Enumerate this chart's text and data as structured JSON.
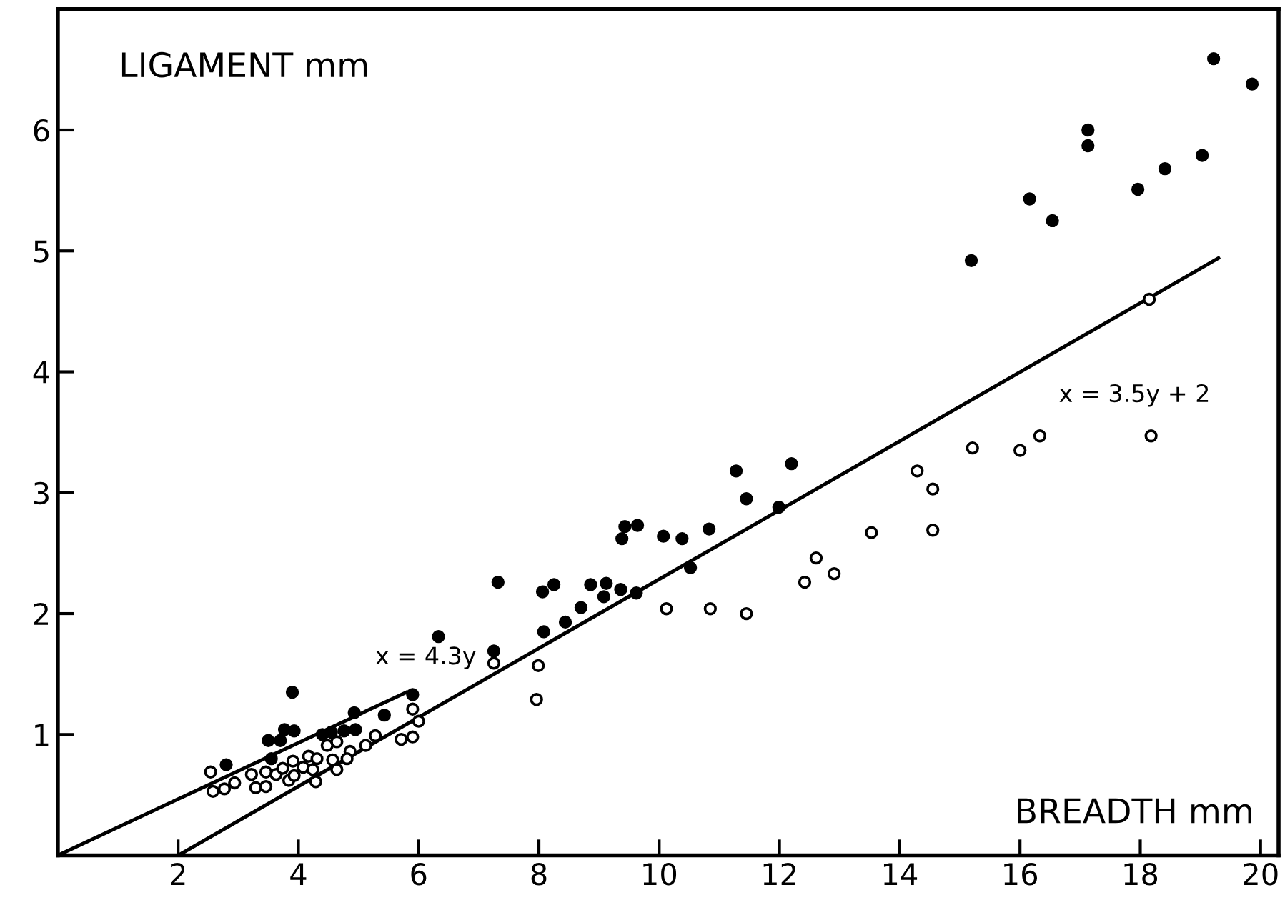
{
  "chart_data": {
    "type": "scatter",
    "xlabel": "BREADTH mm",
    "ylabel": "LIGAMENT mm",
    "xlim": [
      0,
      20.3
    ],
    "ylim": [
      0,
      7
    ],
    "xticks": [
      2,
      4,
      6,
      8,
      10,
      12,
      14,
      16,
      18,
      20
    ],
    "yticks": [
      1,
      2,
      3,
      4,
      5,
      6
    ],
    "grid": false,
    "legend": false,
    "series": [
      {
        "color": "#000000",
        "marker": "circle",
        "x": [
          2.8,
          3.9,
          3.5,
          3.7,
          3.77,
          3.93,
          3.55,
          4.4,
          4.55,
          4.76,
          4.95,
          4.93,
          5.43,
          5.9,
          6.33,
          7.25,
          7.32,
          8.08,
          8.06,
          8.25,
          8.44,
          8.7,
          8.86,
          9.12,
          9.08,
          9.36,
          9.62,
          9.38,
          9.43,
          9.64,
          10.07,
          10.38,
          10.52,
          10.83,
          11.28,
          11.45,
          11.99,
          12.2,
          15.19,
          16.16,
          16.54,
          17.13,
          17.13,
          17.96,
          18.41,
          19.03,
          19.22,
          19.86
        ],
        "values": [
          0.75,
          1.35,
          0.95,
          0.95,
          1.04,
          1.03,
          0.8,
          1.0,
          1.02,
          1.03,
          1.04,
          1.18,
          1.16,
          1.33,
          1.81,
          1.69,
          2.26,
          1.85,
          2.18,
          2.24,
          1.93,
          2.05,
          2.24,
          2.25,
          2.14,
          2.2,
          2.17,
          2.62,
          2.72,
          2.73,
          2.64,
          2.62,
          2.38,
          2.7,
          3.18,
          2.95,
          2.88,
          3.24,
          4.92,
          5.43,
          5.25,
          6.0,
          5.87,
          5.51,
          5.68,
          5.79,
          6.59,
          6.38
        ]
      },
      {
        "color": "#ffffff",
        "marker": "circle",
        "x": [
          2.54,
          2.58,
          2.77,
          2.94,
          3.22,
          3.29,
          3.46,
          3.46,
          3.63,
          3.74,
          3.84,
          3.91,
          3.93,
          4.08,
          4.17,
          4.24,
          4.29,
          4.31,
          4.48,
          4.64,
          4.57,
          4.64,
          4.86,
          4.81,
          5.12,
          5.28,
          5.71,
          5.9,
          5.9,
          6.0,
          7.25,
          7.99,
          7.96,
          10.12,
          10.85,
          11.45,
          12.42,
          12.61,
          12.91,
          13.53,
          14.55,
          14.29,
          14.55,
          15.21,
          16.0,
          16.33,
          18.18,
          18.15
        ],
        "values": [
          0.69,
          0.53,
          0.55,
          0.6,
          0.67,
          0.56,
          0.57,
          0.69,
          0.67,
          0.72,
          0.62,
          0.78,
          0.66,
          0.73,
          0.82,
          0.71,
          0.61,
          0.8,
          0.91,
          0.94,
          0.79,
          0.71,
          0.86,
          0.8,
          0.91,
          0.99,
          0.96,
          0.98,
          1.21,
          1.11,
          1.59,
          1.57,
          1.29,
          2.04,
          2.04,
          2.0,
          2.26,
          2.46,
          2.33,
          2.67,
          2.69,
          3.18,
          3.03,
          3.37,
          3.35,
          3.47,
          3.47,
          4.6
        ]
      },
      {
        "type": "line",
        "color": "#000000",
        "x": [
          0,
          5.8
        ],
        "values": [
          0,
          1.35
        ]
      },
      {
        "type": "line",
        "color": "#000000",
        "x": [
          2,
          19.3
        ],
        "values": [
          0,
          4.94
        ]
      }
    ],
    "annotations": [
      "x = 4.3y",
      "x = 3.5y + 2"
    ]
  }
}
